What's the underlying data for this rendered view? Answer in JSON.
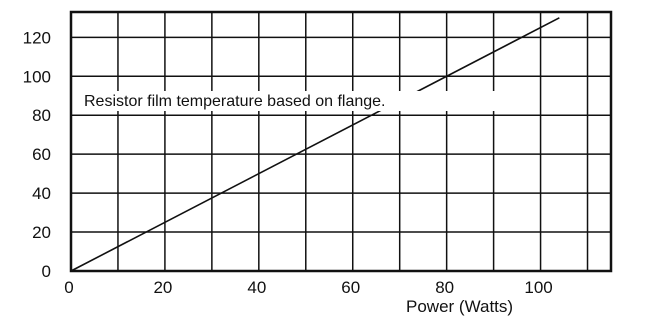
{
  "chart_data": {
    "type": "line",
    "title": "",
    "xlabel": "Power (Watts)",
    "ylabel": "",
    "xlim": [
      0,
      115
    ],
    "ylim": [
      0,
      133
    ],
    "x_ticks": [
      0,
      20,
      40,
      60,
      80,
      100
    ],
    "y_ticks": [
      0,
      20,
      40,
      60,
      80,
      100,
      120
    ],
    "x_grid_lines": [
      0,
      10,
      20,
      30,
      40,
      50,
      60,
      70,
      80,
      90,
      100,
      110,
      115
    ],
    "y_grid_lines": [
      0,
      20,
      40,
      60,
      80,
      100,
      120,
      133
    ],
    "grid": true,
    "series": [
      {
        "x": [
          0,
          104
        ],
        "y": [
          0,
          130
        ]
      }
    ],
    "annotation": "Resistor film temperature based on flange."
  }
}
